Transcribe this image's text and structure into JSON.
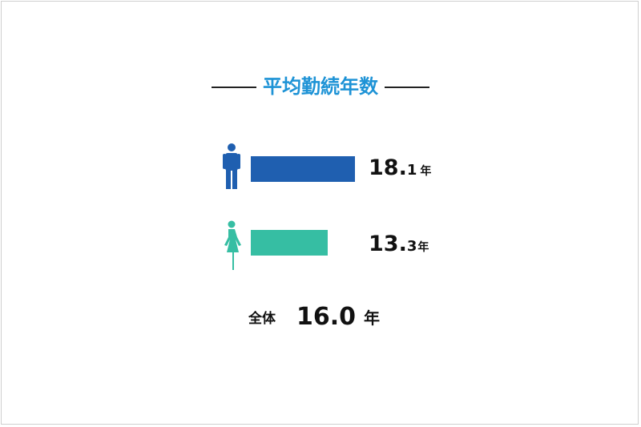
{
  "chart_data": {
    "type": "bar",
    "title": "平均勤続年数",
    "categories": [
      "男性",
      "女性"
    ],
    "values": [
      18.1,
      13.3
    ],
    "unit": "年",
    "colors": [
      "#1f5fb0",
      "#36bea3"
    ],
    "icons": [
      "male-icon",
      "female-icon"
    ],
    "total": {
      "label": "全体",
      "value": "16.0",
      "unit": "年"
    }
  }
}
